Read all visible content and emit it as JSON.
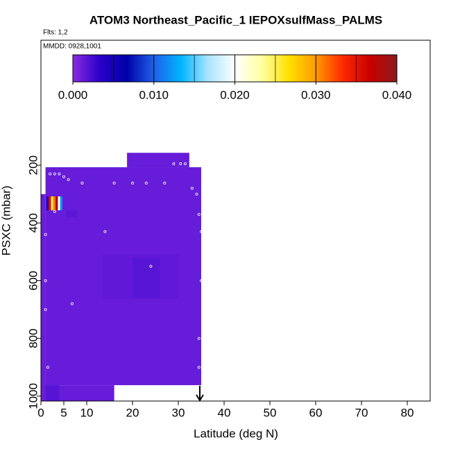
{
  "chart_data": {
    "type": "heatmap",
    "title": "ATOM3 Northeast_Pacific_1 IEPOXsulfMass_PALMS",
    "flights_label": "Flts: 1,2",
    "dates_label": "MMDD: 0928,1001",
    "xlabel": "Latitude (deg N)",
    "ylabel": "PSXC (mbar)",
    "xlim": [
      0,
      85
    ],
    "ylim": [
      1017,
      -233
    ],
    "xticks": [
      0,
      5,
      10,
      20,
      30,
      40,
      50,
      60,
      70,
      80
    ],
    "yticks": [
      200,
      400,
      600,
      800,
      1000
    ],
    "colorbar": {
      "lim": [
        0,
        0.04
      ],
      "ticks": [
        {
          "value": 0,
          "label": "0.000"
        },
        {
          "value": 0.01,
          "label": "0.010"
        },
        {
          "value": 0.02,
          "label": "0.020"
        },
        {
          "value": 0.03,
          "label": "0.030"
        },
        {
          "value": 0.04,
          "label": "0.040"
        }
      ],
      "colors": [
        "#8a2be2",
        "#2a00c8",
        "#0000a8",
        "#2060e8",
        "#00b4ff",
        "#a8e4ff",
        "#ffffff",
        "#ffffa0",
        "#ffe000",
        "#ff9a00",
        "#ff2800",
        "#c80000",
        "#8b1a1a"
      ]
    },
    "cells": [
      {
        "lat": [
          1,
          35
        ],
        "p": [
          207,
          962
        ],
        "value": 0.0012
      },
      {
        "lat": [
          18.8,
          32.4
        ],
        "p": [
          157,
          207
        ],
        "value": 0.0012
      },
      {
        "lat": [
          0,
          1
        ],
        "p": [
          300,
          1017
        ],
        "value": 0.0011
      },
      {
        "lat": [
          1,
          16
        ],
        "p": [
          962,
          1017
        ],
        "value": 0.0012
      },
      {
        "lat": [
          13.5,
          30
        ],
        "p": [
          508,
          663
        ],
        "value": 0.0014
      },
      {
        "lat": [
          20,
          26
        ],
        "p": [
          520,
          660
        ],
        "value": 0.0017
      },
      {
        "lat": [
          1,
          4
        ],
        "p": [
          962,
          1017
        ],
        "value": 0.0018
      },
      {
        "lat": [
          5.5,
          8
        ],
        "p": [
          356,
          380
        ],
        "value": 0.0016
      },
      {
        "lat": [
          1.2,
          1.7
        ],
        "p": [
          308,
          356
        ],
        "value": 0.005
      },
      {
        "lat": [
          1.7,
          2.2
        ],
        "p": [
          308,
          356
        ],
        "value": 0.035
      },
      {
        "lat": [
          2.2,
          2.7
        ],
        "p": [
          308,
          356
        ],
        "value": 0.025
      },
      {
        "lat": [
          2.7,
          3.2
        ],
        "p": [
          308,
          356
        ],
        "value": 0.031
      },
      {
        "lat": [
          3.2,
          3.7
        ],
        "p": [
          308,
          356
        ],
        "value": 0.038
      },
      {
        "lat": [
          3.7,
          4.2
        ],
        "p": [
          308,
          356
        ],
        "value": 0.02
      },
      {
        "lat": [
          4.2,
          4.7
        ],
        "p": [
          308,
          356
        ],
        "value": 0.012
      }
    ],
    "points": {
      "lat": [
        1,
        2,
        3,
        4,
        5,
        6,
        9,
        16,
        20,
        23,
        27,
        29,
        30.5,
        31.5,
        33,
        34,
        34.5,
        35,
        35,
        34.5,
        34.5,
        1,
        6.8,
        14,
        24,
        3,
        1,
        1.5
      ],
      "p": [
        440,
        230,
        230,
        230,
        240,
        250,
        262,
        262,
        262,
        262,
        262,
        195,
        195,
        195,
        280,
        300,
        370,
        430,
        600,
        800,
        900,
        600,
        680,
        430,
        550,
        360,
        700,
        900
      ]
    }
  }
}
